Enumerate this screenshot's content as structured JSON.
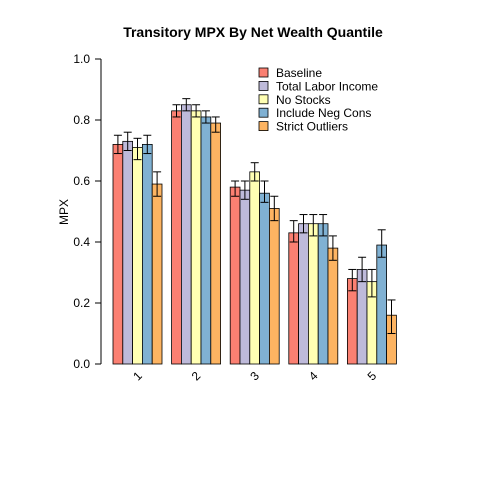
{
  "chart_data": {
    "type": "bar",
    "title": "Transitory MPX By Net Wealth Quantile",
    "xlabel": "",
    "ylabel": "MPX",
    "ylim": [
      0,
      1
    ],
    "yticks": [
      "0.0",
      "0.2",
      "0.4",
      "0.6",
      "0.8",
      "1.0"
    ],
    "categories": [
      "1",
      "2",
      "3",
      "4",
      "5"
    ],
    "legend_position": "top-right",
    "error_bars": true,
    "series": [
      {
        "name": "Baseline",
        "color": "#FB8072",
        "values": [
          0.72,
          0.83,
          0.58,
          0.43,
          0.28
        ],
        "err_low": [
          0.69,
          0.81,
          0.55,
          0.4,
          0.24
        ],
        "err_high": [
          0.75,
          0.85,
          0.6,
          0.47,
          0.31
        ]
      },
      {
        "name": "Total Labor Income",
        "color": "#BEBADA",
        "values": [
          0.73,
          0.85,
          0.57,
          0.46,
          0.31
        ],
        "err_low": [
          0.7,
          0.83,
          0.54,
          0.43,
          0.27
        ],
        "err_high": [
          0.76,
          0.87,
          0.6,
          0.49,
          0.35
        ]
      },
      {
        "name": "No Stocks",
        "color": "#FFFFB3",
        "values": [
          0.71,
          0.83,
          0.63,
          0.46,
          0.27
        ],
        "err_low": [
          0.67,
          0.81,
          0.6,
          0.42,
          0.22
        ],
        "err_high": [
          0.74,
          0.85,
          0.66,
          0.49,
          0.31
        ]
      },
      {
        "name": "Include Neg Cons",
        "color": "#80B1D3",
        "values": [
          0.72,
          0.81,
          0.56,
          0.46,
          0.39
        ],
        "err_low": [
          0.69,
          0.79,
          0.53,
          0.42,
          0.35
        ],
        "err_high": [
          0.75,
          0.83,
          0.6,
          0.49,
          0.44
        ]
      },
      {
        "name": "Strict Outliers",
        "color": "#FDB462",
        "values": [
          0.59,
          0.79,
          0.51,
          0.38,
          0.16
        ],
        "err_low": [
          0.55,
          0.76,
          0.47,
          0.34,
          0.1
        ],
        "err_high": [
          0.63,
          0.81,
          0.55,
          0.42,
          0.21
        ]
      }
    ]
  }
}
